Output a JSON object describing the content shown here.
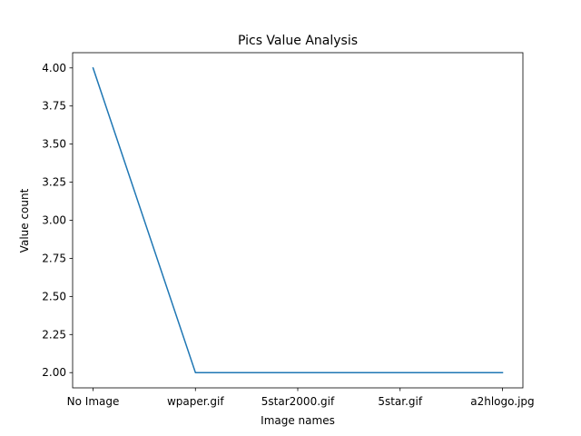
{
  "chart_data": {
    "type": "line",
    "title": "Pics Value Analysis",
    "xlabel": "Image names",
    "ylabel": "Value count",
    "categories": [
      "No Image",
      "wpaper.gif",
      "5star2000.gif",
      "5star.gif",
      "a2hlogo.jpg"
    ],
    "series": [
      {
        "values": [
          4.0,
          2.0,
          2.0,
          2.0,
          2.0
        ],
        "color": "#1f77b4"
      }
    ],
    "ylim": [
      1.9,
      4.1
    ],
    "yticks": [
      2.0,
      2.25,
      2.5,
      2.75,
      3.0,
      3.25,
      3.5,
      3.75,
      4.0
    ],
    "ytick_labels": [
      "2.00",
      "2.25",
      "2.50",
      "2.75",
      "3.00",
      "3.25",
      "3.50",
      "3.75",
      "4.00"
    ],
    "grid": false,
    "legend": "none"
  }
}
